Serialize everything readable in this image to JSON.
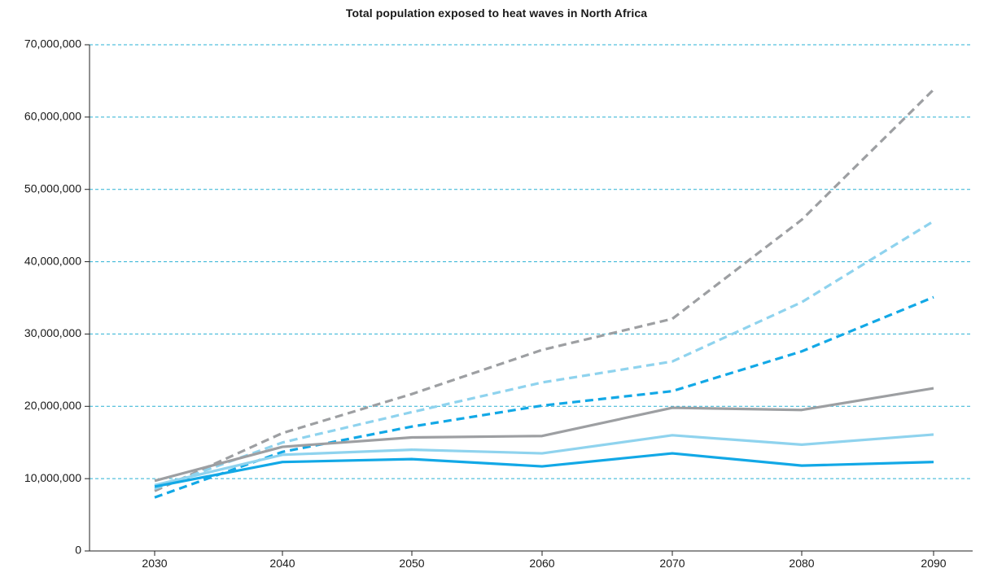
{
  "chart_data": {
    "type": "line",
    "title": "Total population exposed to heat waves in North Africa",
    "xlabel": "",
    "ylabel": "",
    "x": [
      2030,
      2040,
      2050,
      2060,
      2070,
      2080,
      2090
    ],
    "x_tick_labels": [
      "2030",
      "2040",
      "2050",
      "2060",
      "2070",
      "2080",
      "2090"
    ],
    "y_tick_labels": [
      "0",
      "10,000,000",
      "20,000,000",
      "30,000,000",
      "40,000,000",
      "50,000,000",
      "60,000,000",
      "70,000,000"
    ],
    "ylim": [
      0,
      70000000
    ],
    "y_ticks": [
      0,
      10000000,
      20000000,
      30000000,
      40000000,
      50000000,
      60000000,
      70000000
    ],
    "grid": "horizontal dashed",
    "legend": "none",
    "series": [
      {
        "color": "#9d9fa2",
        "style": "dashed",
        "values": [
          8300000,
          16300000,
          21700000,
          27800000,
          32100000,
          45800000,
          63800000
        ]
      },
      {
        "color": "#8fd3ee",
        "style": "dashed",
        "values": [
          8600000,
          15000000,
          19200000,
          23300000,
          26200000,
          34400000,
          45600000
        ]
      },
      {
        "color": "#12a8e6",
        "style": "dashed",
        "values": [
          7400000,
          13700000,
          17200000,
          20100000,
          22100000,
          27600000,
          35100000
        ]
      },
      {
        "color": "#9d9fa2",
        "style": "solid",
        "values": [
          9700000,
          14400000,
          15700000,
          15900000,
          19800000,
          19500000,
          22500000
        ]
      },
      {
        "color": "#8fd3ee",
        "style": "solid",
        "values": [
          9100000,
          13300000,
          14000000,
          13500000,
          16000000,
          14700000,
          16100000
        ]
      },
      {
        "color": "#12a8e6",
        "style": "solid",
        "values": [
          8900000,
          12300000,
          12700000,
          11700000,
          13500000,
          11800000,
          12300000
        ]
      }
    ]
  }
}
